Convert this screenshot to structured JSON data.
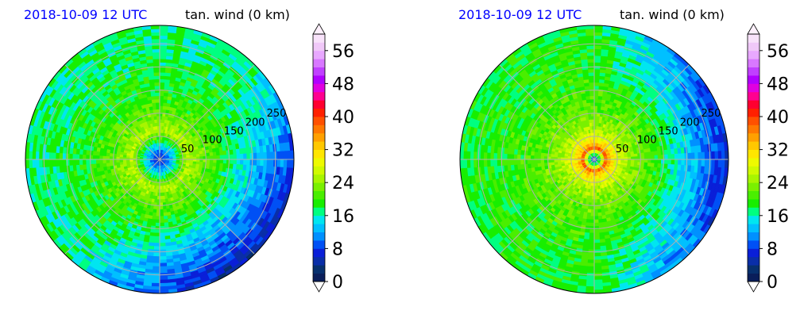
{
  "chart_data": [
    {
      "type": "heatmap",
      "projection": "polar",
      "title_left": "2018-10-09 12 UTC",
      "title_right": "tan. wind (0 km)",
      "radial_ticks": [
        "50",
        "100",
        "150",
        "200",
        "250"
      ],
      "radial_values": [
        50,
        100,
        150,
        200,
        250
      ],
      "r_max": 290,
      "colorbar": {
        "ticks": [
          "0",
          "8",
          "16",
          "24",
          "32",
          "40",
          "48",
          "56"
        ],
        "range": [
          0,
          60
        ],
        "step": 2,
        "extend": "both"
      },
      "field": {
        "core_center_value": 6,
        "max_value": 26,
        "max_radius_km": 60,
        "background_value": 14,
        "outer_low_quadrant": "south-east",
        "outer_low_value": 6
      }
    },
    {
      "type": "heatmap",
      "projection": "polar",
      "title_left": "2018-10-09 12 UTC",
      "title_right": "tan. wind (0 km)",
      "radial_ticks": [
        "50",
        "100",
        "150",
        "200",
        "250"
      ],
      "radial_values": [
        50,
        100,
        150,
        200,
        250
      ],
      "r_max": 290,
      "colorbar": {
        "ticks": [
          "0",
          "8",
          "16",
          "24",
          "32",
          "40",
          "48",
          "56"
        ],
        "range": [
          0,
          60
        ],
        "step": 2,
        "extend": "both"
      },
      "field": {
        "core_center_value": 6,
        "max_value": 38,
        "max_radius_km": 25,
        "background_value": 16,
        "outer_low_quadrant": "east",
        "outer_low_value": 8
      }
    }
  ],
  "colors": {
    "title_left": "#0000ff",
    "title_right": "#000000",
    "grid": "#b0b0b0"
  }
}
